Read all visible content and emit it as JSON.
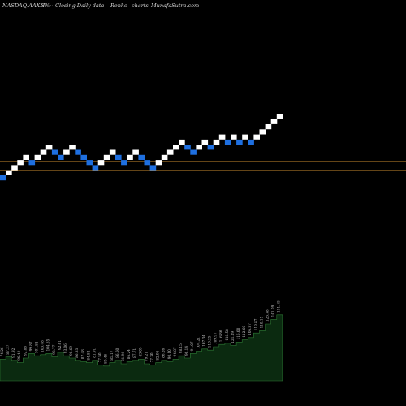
{
  "header": {
    "symbol": "NASDAQ:AAXN",
    "change": "3%",
    "arrow": "~",
    "description": "Closing Daily data",
    "chart_kind": "Renko",
    "charts_word": "charts",
    "site": "MunafaSutra.com"
  },
  "colors": {
    "background": "#000000",
    "up_brick": "#ffffff",
    "down_brick": "#1e6fe0",
    "reference_line": "#c88a2e",
    "volume_fill": "#0b2a10",
    "volume_edge": "#2e7a35",
    "text": "#d8d8d8"
  },
  "chart_data": {
    "type": "renko",
    "directions": [
      "down",
      "up",
      "up",
      "up",
      "up",
      "down",
      "up",
      "up",
      "up",
      "down",
      "down",
      "up",
      "up",
      "down",
      "down",
      "down",
      "down",
      "up",
      "up",
      "up",
      "down",
      "down",
      "up",
      "up",
      "down",
      "down",
      "down",
      "up",
      "up",
      "up",
      "up",
      "up",
      "down",
      "down",
      "up",
      "up",
      "down",
      "up",
      "up",
      "down",
      "up",
      "down",
      "up",
      "down",
      "up",
      "up",
      "up",
      "up",
      "up"
    ],
    "reference_lines": 2,
    "volume": {
      "levels": [
        19,
        21,
        18,
        16,
        20,
        24,
        22,
        23,
        24,
        21,
        25,
        22,
        20,
        18,
        17,
        16,
        18,
        14,
        13,
        16,
        18,
        15,
        17,
        18,
        19,
        15,
        14,
        16,
        18,
        17,
        19,
        22,
        20,
        24,
        26,
        28,
        27,
        30,
        32,
        33,
        31,
        34,
        36,
        38,
        42,
        44,
        50,
        54,
        58
      ],
      "labels": [
        "74.26",
        "87.37",
        "91.92",
        "90.49",
        "92.86",
        "99.87",
        "101.82",
        "103.48",
        "104.65",
        "98.77",
        "92.61",
        "93.06",
        "90.69",
        "86.83",
        "87.48",
        "84.84",
        "81.91",
        "77.50",
        "80.46",
        "85.17",
        "86.60",
        "81.96",
        "86.24",
        "87.71",
        "83.05",
        "79.21",
        "77.30",
        "82.96",
        "86.26",
        "90.10",
        "94.87",
        "98.15",
        "96.14",
        "91.07",
        "104.21",
        "107.34",
        "113.25",
        "109.97",
        "116.86",
        "118.58",
        "121.29",
        "116.00",
        "112.60",
        "106.87",
        "119.87",
        "118.15",
        "125.38",
        "141.09",
        "151.55"
      ]
    }
  }
}
